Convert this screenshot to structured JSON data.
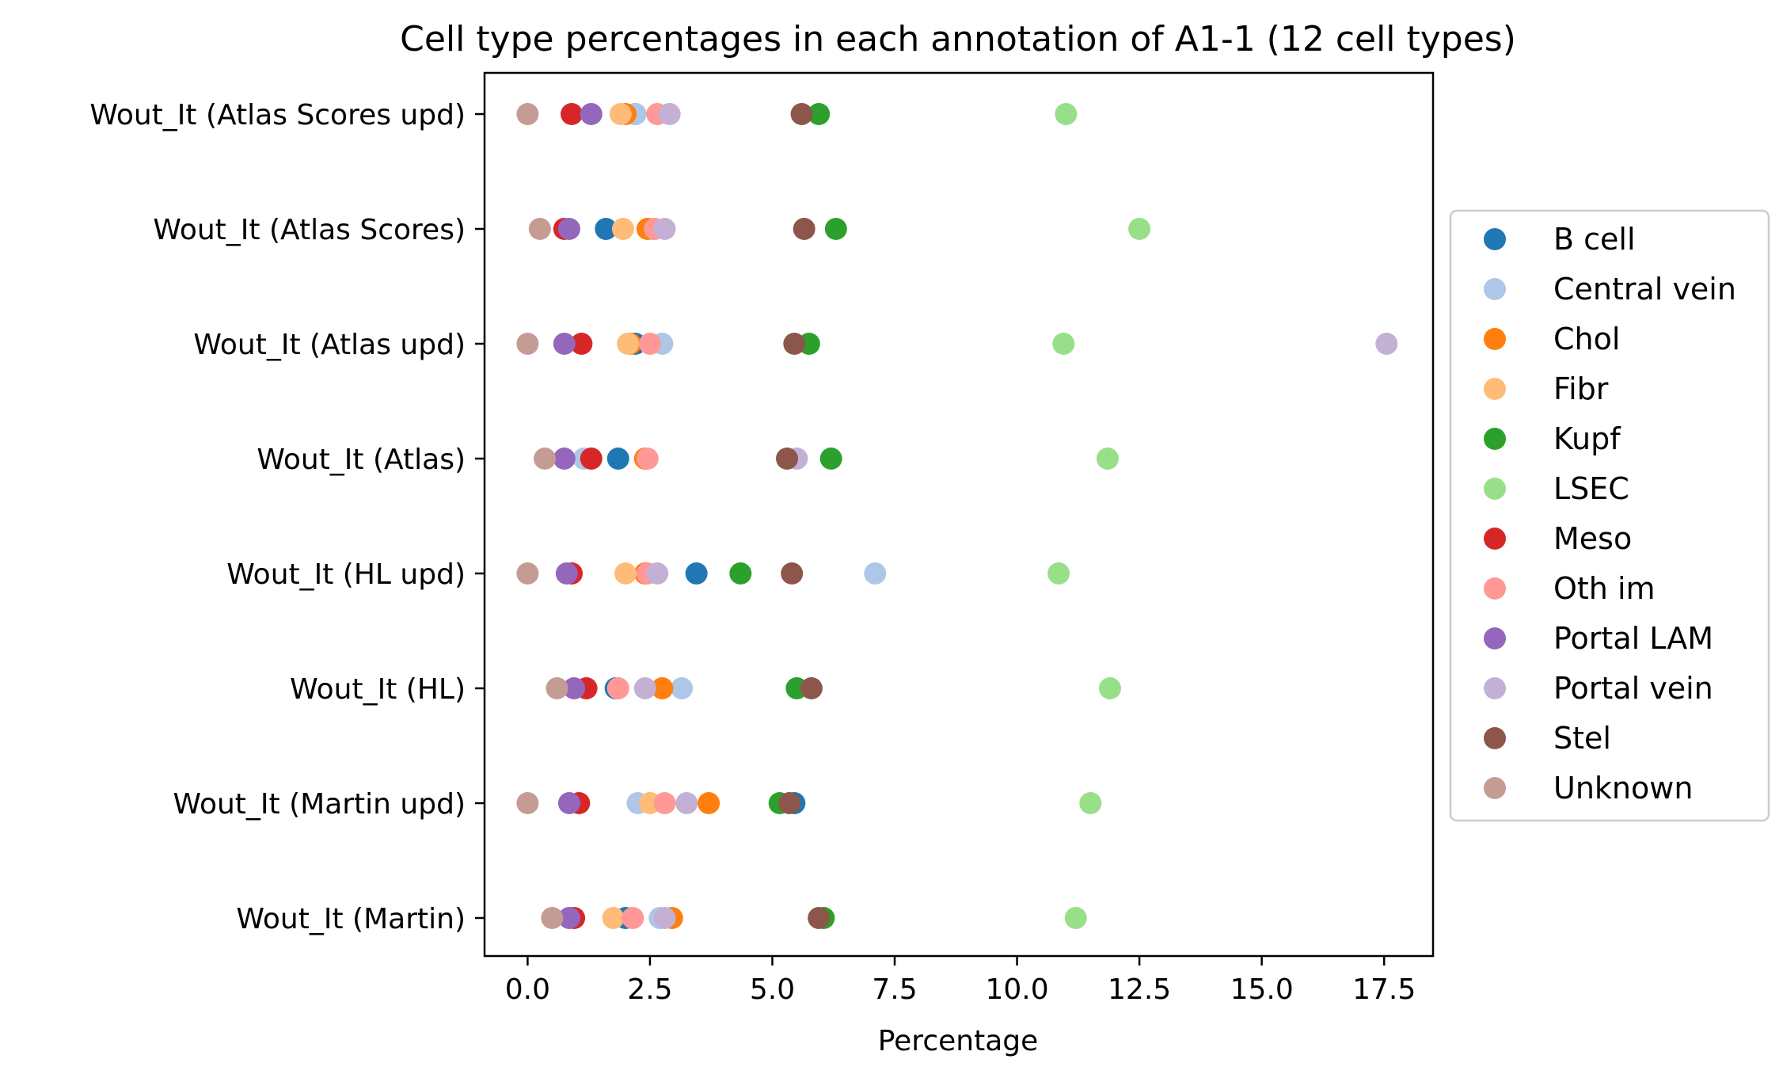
{
  "chart_data": {
    "type": "scatter",
    "title": "Cell type percentages in each annotation of A1-1 (12 cell types)",
    "xlabel": "Percentage",
    "ylabel": "",
    "xlim": [
      -0.88,
      18.5
    ],
    "xticks": [
      0.0,
      2.5,
      5.0,
      7.5,
      10.0,
      12.5,
      15.0,
      17.5
    ],
    "xtick_labels": [
      "0.0",
      "2.5",
      "5.0",
      "7.5",
      "10.0",
      "12.5",
      "15.0",
      "17.5"
    ],
    "categories": [
      "Wout_It (Atlas Scores upd)",
      "Wout_It (Atlas Scores)",
      "Wout_It (Atlas upd)",
      "Wout_It (Atlas)",
      "Wout_It (HL upd)",
      "Wout_It (HL)",
      "Wout_It (Martin upd)",
      "Wout_It (Martin)"
    ],
    "legend_position": "outside-right",
    "grid": false,
    "series": [
      {
        "name": "B cell",
        "color": "#1f77b4",
        "values": [
          2.2,
          1.6,
          2.2,
          1.85,
          3.45,
          1.8,
          5.45,
          2.0
        ]
      },
      {
        "name": "Central vein",
        "color": "#aec7e8",
        "values": [
          2.2,
          2.55,
          2.75,
          1.15,
          7.1,
          3.15,
          2.25,
          2.7
        ]
      },
      {
        "name": "Chol",
        "color": "#ff7f0e",
        "values": [
          2.0,
          2.45,
          2.1,
          2.4,
          2.4,
          2.75,
          3.7,
          2.95
        ]
      },
      {
        "name": "Fibr",
        "color": "#ffbb78",
        "values": [
          1.9,
          1.95,
          2.05,
          1.3,
          2.0,
          1.85,
          2.5,
          1.75
        ]
      },
      {
        "name": "Kupf",
        "color": "#2ca02c",
        "values": [
          5.95,
          6.3,
          5.75,
          6.2,
          4.35,
          5.5,
          5.15,
          6.05
        ]
      },
      {
        "name": "LSEC",
        "color": "#98df8a",
        "values": [
          11.0,
          12.5,
          10.95,
          11.85,
          10.85,
          11.9,
          11.5,
          11.2
        ]
      },
      {
        "name": "Meso",
        "color": "#d62728",
        "values": [
          0.9,
          0.75,
          1.1,
          1.3,
          0.9,
          1.2,
          1.05,
          0.95
        ]
      },
      {
        "name": "Oth im",
        "color": "#ff9896",
        "values": [
          2.65,
          2.6,
          2.5,
          2.45,
          2.45,
          1.85,
          2.8,
          2.15
        ]
      },
      {
        "name": "Portal LAM",
        "color": "#9467bd",
        "values": [
          1.3,
          0.85,
          0.75,
          0.75,
          0.8,
          0.95,
          0.85,
          0.85
        ]
      },
      {
        "name": "Portal vein",
        "color": "#c5b0d5",
        "values": [
          2.9,
          2.8,
          17.55,
          5.5,
          2.65,
          2.4,
          3.25,
          2.8
        ]
      },
      {
        "name": "Stel",
        "color": "#8c564b",
        "values": [
          5.6,
          5.65,
          5.45,
          5.3,
          5.4,
          5.8,
          5.35,
          5.95
        ]
      },
      {
        "name": "Unknown",
        "color": "#c49c94",
        "values": [
          0.0,
          0.25,
          0.0,
          0.35,
          0.0,
          0.6,
          0.0,
          0.5
        ]
      }
    ]
  }
}
